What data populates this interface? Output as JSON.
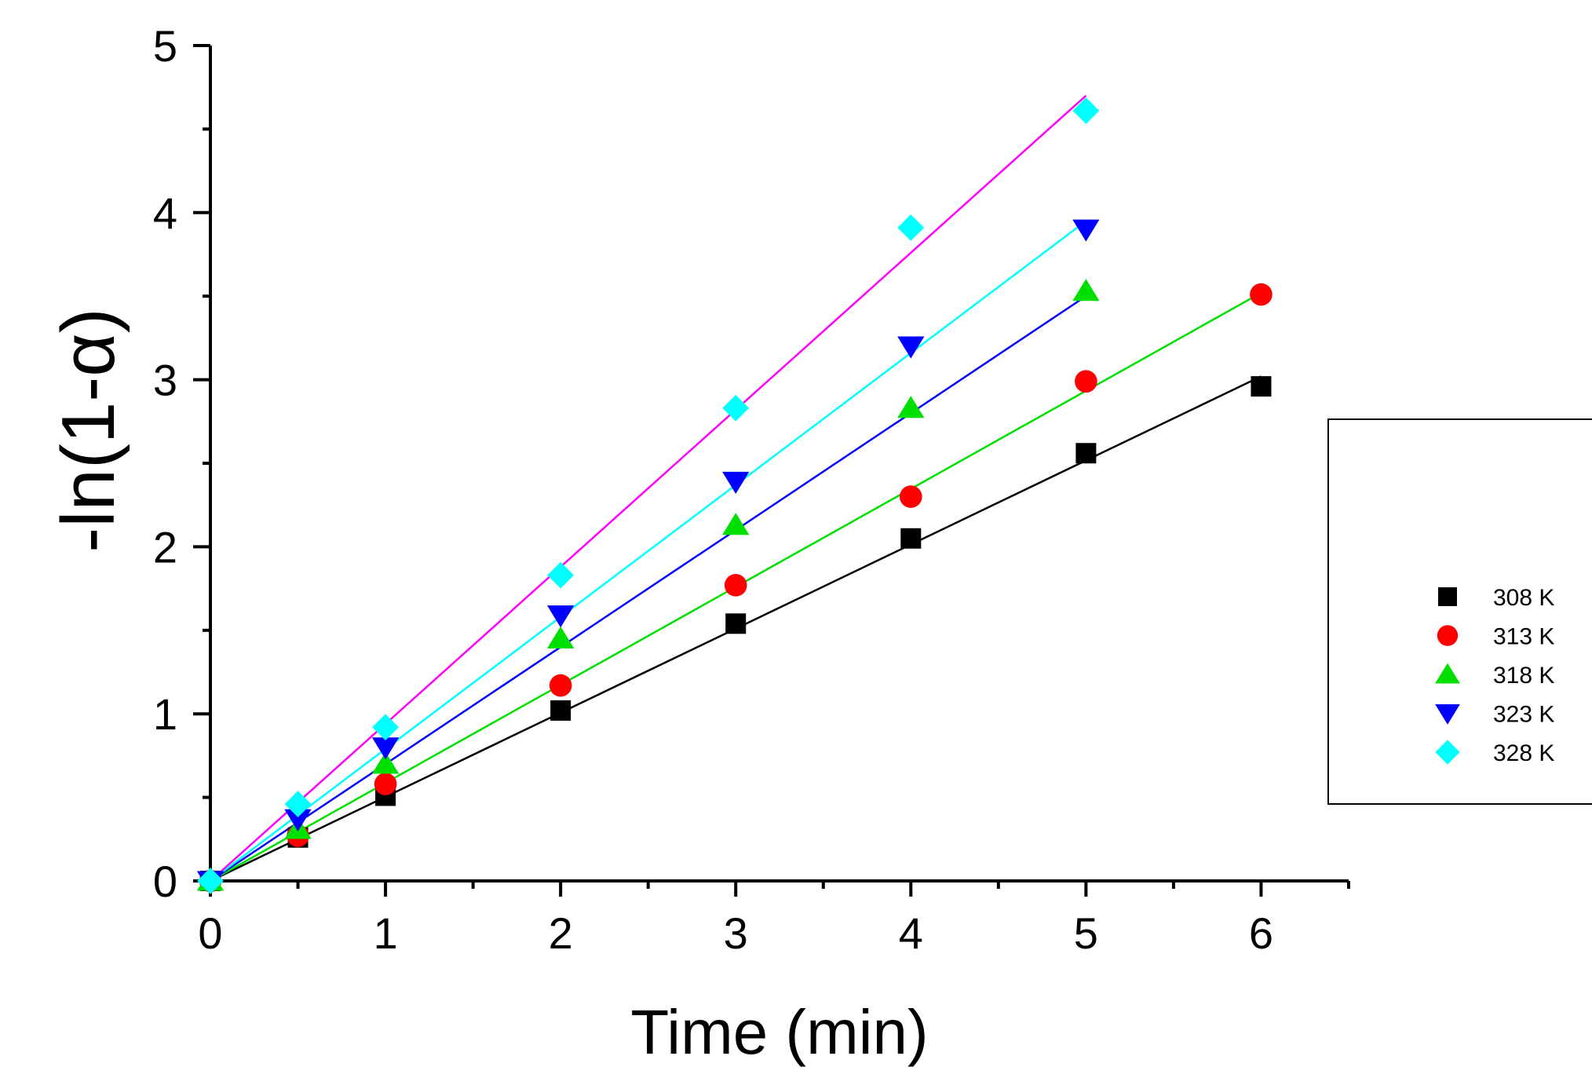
{
  "chart_data": {
    "type": "scatter",
    "title": "",
    "xlabel": "Time (min)",
    "ylabel": "-ln(1-α)",
    "xlim": [
      0,
      6.5
    ],
    "ylim": [
      0,
      5
    ],
    "x_ticks": [
      0,
      1,
      2,
      3,
      4,
      5,
      6
    ],
    "y_ticks": [
      0,
      1,
      2,
      3,
      4,
      5
    ],
    "x_minor_step": 0.5,
    "y_minor_step": 0.5,
    "grid": false,
    "legend_position": "right",
    "series": [
      {
        "name": "308 K",
        "marker": "square",
        "color": "#000000",
        "fit_color": "#000000",
        "x": [
          0,
          0.5,
          1,
          2,
          3,
          4,
          5,
          6
        ],
        "values": [
          0,
          0.26,
          0.51,
          1.02,
          1.54,
          2.05,
          2.56,
          2.96
        ],
        "fit": {
          "x": [
            0,
            6
          ],
          "y": [
            0,
            3.02
          ]
        }
      },
      {
        "name": "313 K",
        "marker": "circle",
        "color": "#ff0000",
        "fit_color": "#00e000",
        "x": [
          0,
          0.5,
          1,
          2,
          3,
          4,
          5,
          6
        ],
        "values": [
          0,
          0.27,
          0.58,
          1.17,
          1.77,
          2.3,
          2.99,
          3.51
        ],
        "fit": {
          "x": [
            0,
            6
          ],
          "y": [
            0,
            3.52
          ]
        }
      },
      {
        "name": "318 K",
        "marker": "triangle-up",
        "color": "#00e000",
        "fit_color": "#0000ff",
        "x": [
          0,
          0.5,
          1,
          2,
          3,
          4,
          5
        ],
        "values": [
          0,
          0.31,
          0.7,
          1.45,
          2.13,
          2.83,
          3.53
        ],
        "fit": {
          "x": [
            0,
            5
          ],
          "y": [
            0,
            3.5
          ]
        }
      },
      {
        "name": "323 K",
        "marker": "triangle-down",
        "color": "#0000ff",
        "fit_color": "#00ffff",
        "x": [
          0,
          0.5,
          1,
          2,
          3,
          4,
          5
        ],
        "values": [
          0,
          0.37,
          0.8,
          1.59,
          2.39,
          3.2,
          3.9
        ],
        "fit": {
          "x": [
            0,
            5
          ],
          "y": [
            0,
            3.95
          ]
        }
      },
      {
        "name": "328 K",
        "marker": "diamond",
        "color": "#00ffff",
        "fit_color": "#ff00ff",
        "x": [
          0,
          0.5,
          1,
          2,
          3,
          4,
          5
        ],
        "values": [
          0,
          0.46,
          0.92,
          1.83,
          2.83,
          3.91,
          4.61
        ],
        "fit": {
          "x": [
            0,
            5
          ],
          "y": [
            0,
            4.7
          ]
        }
      }
    ]
  }
}
